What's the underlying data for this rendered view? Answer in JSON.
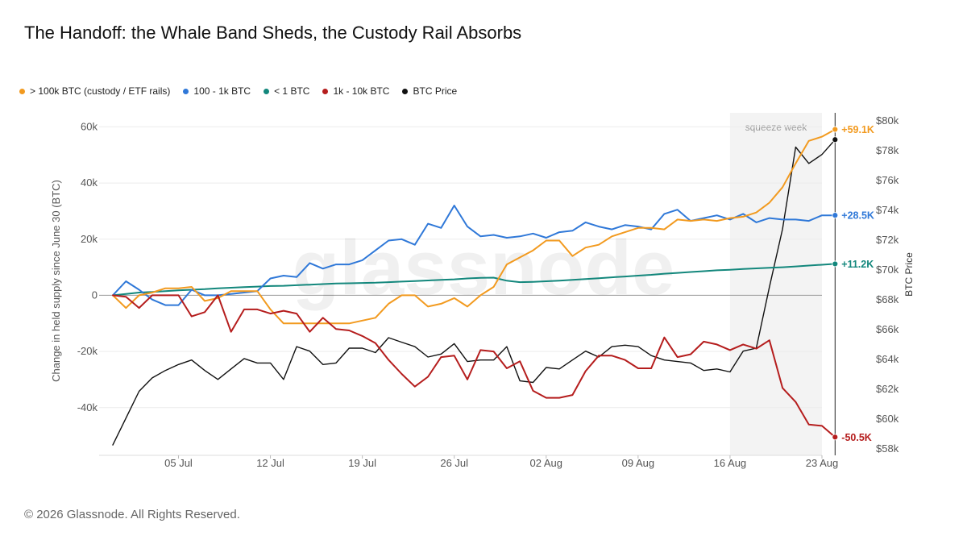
{
  "title": "The Handoff: the Whale Band Sheds, the Custody Rail Absorbs",
  "footer": "© 2026 Glassnode. All Rights Reserved.",
  "watermark": "glassnode",
  "colors": {
    "custody": "#f29a1f",
    "band100": "#2f78d8",
    "small": "#13877c",
    "band1k": "#b51d1d",
    "price": "#111111"
  },
  "chart_data": {
    "type": "line",
    "title": "The Handoff: the Whale Band Sheds, the Custody Rail Absorbs",
    "ylabel": "Change in held supply since June 30 (BTC)",
    "y2label": "BTC Price",
    "ylim": [
      -57000,
      65000
    ],
    "y2lim": [
      57500,
      80500
    ],
    "yticks": [
      -40000,
      -20000,
      0,
      20000,
      40000,
      60000
    ],
    "ytick_labels": [
      "-40k",
      "-20k",
      "0",
      "20k",
      "40k",
      "60k"
    ],
    "y2ticks": [
      58000,
      60000,
      62000,
      64000,
      66000,
      68000,
      70000,
      72000,
      74000,
      76000,
      78000,
      80000
    ],
    "y2tick_labels": [
      "$58k",
      "$60k",
      "$62k",
      "$64k",
      "$66k",
      "$68k",
      "$70k",
      "$72k",
      "$74k",
      "$76k",
      "$78k",
      "$80k"
    ],
    "x_start": "2025-06-30",
    "x_end": "2025-08-23",
    "xticks": [
      "2025-07-05",
      "2025-07-12",
      "2025-07-19",
      "2025-07-26",
      "2025-08-02",
      "2025-08-09",
      "2025-08-16",
      "2025-08-23"
    ],
    "xtick_labels": [
      "05 Jul",
      "12 Jul",
      "19 Jul",
      "26 Jul",
      "02 Aug",
      "09 Aug",
      "16 Aug",
      "23 Aug"
    ],
    "grid": true,
    "legend_position": "top-left",
    "shaded_region": {
      "start": "2025-08-16",
      "end": "2025-08-23",
      "label": "squeeze week"
    },
    "series": [
      {
        "key": "custody",
        "name": "> 100k BTC (custody / ETF rails)",
        "axis": "left",
        "end_label": "+59.1K",
        "values": [
          0,
          -4500,
          0,
          1000,
          2500,
          2500,
          3000,
          -2000,
          -1000,
          1500,
          1500,
          1500,
          -5000,
          -10000,
          -10000,
          -10000,
          -10000,
          -10000,
          -10000,
          -9000,
          -8000,
          -3000,
          0,
          0,
          -4000,
          -3000,
          -1000,
          -4000,
          0,
          3000,
          11000,
          13500,
          16000,
          19500,
          19500,
          14000,
          17000,
          18000,
          21000,
          22500,
          24000,
          24000,
          23500,
          27000,
          26500,
          27000,
          26500,
          27500,
          28000,
          29500,
          33000,
          38500,
          47000,
          55000,
          56500,
          59100
        ]
      },
      {
        "key": "band100",
        "name": "100 - 1k BTC",
        "axis": "left",
        "end_label": "+28.5K",
        "values": [
          0,
          5000,
          2000,
          -1500,
          -3500,
          -3500,
          2000,
          0,
          0,
          500,
          1000,
          1500,
          6000,
          7000,
          6500,
          11500,
          9500,
          11000,
          11000,
          12500,
          16000,
          19500,
          20000,
          18000,
          25500,
          24000,
          32000,
          24500,
          21000,
          21500,
          20500,
          21000,
          22000,
          20500,
          22500,
          23000,
          26000,
          24500,
          23500,
          25000,
          24500,
          23500,
          29000,
          30500,
          26500,
          27500,
          28500,
          27000,
          29000,
          26000,
          27500,
          27000,
          27000,
          26500,
          28500,
          28500
        ]
      },
      {
        "key": "small",
        "name": "< 1 BTC",
        "axis": "left",
        "end_label": "+11.2K",
        "values": [
          0,
          500,
          1000,
          1200,
          1500,
          1800,
          2000,
          2200,
          2500,
          2700,
          2900,
          3100,
          3300,
          3400,
          3600,
          3800,
          4000,
          4200,
          4300,
          4400,
          4500,
          4700,
          4900,
          5100,
          5300,
          5500,
          5700,
          6000,
          6200,
          6300,
          5200,
          4700,
          4800,
          5000,
          5200,
          5500,
          5800,
          6100,
          6400,
          6700,
          7000,
          7300,
          7700,
          8000,
          8300,
          8600,
          8900,
          9100,
          9400,
          9600,
          9800,
          10000,
          10300,
          10600,
          10900,
          11200
        ]
      },
      {
        "key": "band1k",
        "name": "1k - 10k BTC",
        "axis": "left",
        "end_label": "-50.5K",
        "values": [
          0,
          -500,
          -4500,
          0,
          0,
          0,
          -7500,
          -6000,
          0,
          -13000,
          -5000,
          -5000,
          -6500,
          -5500,
          -6500,
          -13000,
          -8000,
          -12000,
          -12500,
          -14500,
          -17000,
          -23000,
          -28000,
          -32500,
          -29000,
          -22000,
          -21500,
          -30000,
          -19500,
          -20000,
          -26000,
          -23500,
          -34000,
          -36500,
          -36500,
          -35500,
          -27000,
          -21500,
          -21500,
          -23000,
          -26000,
          -26000,
          -15000,
          -22000,
          -21000,
          -16500,
          -17500,
          -19500,
          -17500,
          -19000,
          -16000,
          -33000,
          -38000,
          -46000,
          -46500,
          -50500
        ]
      },
      {
        "key": "price",
        "name": "BTC Price",
        "axis": "right",
        "values": [
          58200,
          60000,
          61800,
          62700,
          63200,
          63600,
          63900,
          63200,
          62600,
          63300,
          64000,
          63700,
          63700,
          62600,
          64800,
          64500,
          63600,
          63700,
          64700,
          64700,
          64400,
          65400,
          65100,
          64800,
          64100,
          64300,
          65000,
          63800,
          63900,
          63900,
          64800,
          62500,
          62400,
          63400,
          63300,
          63900,
          64500,
          64100,
          64800,
          64900,
          64800,
          64200,
          63900,
          63800,
          63700,
          63200,
          63300,
          63100,
          64500,
          64700,
          68800,
          72700,
          78200,
          77100,
          77700,
          78700
        ]
      }
    ]
  }
}
